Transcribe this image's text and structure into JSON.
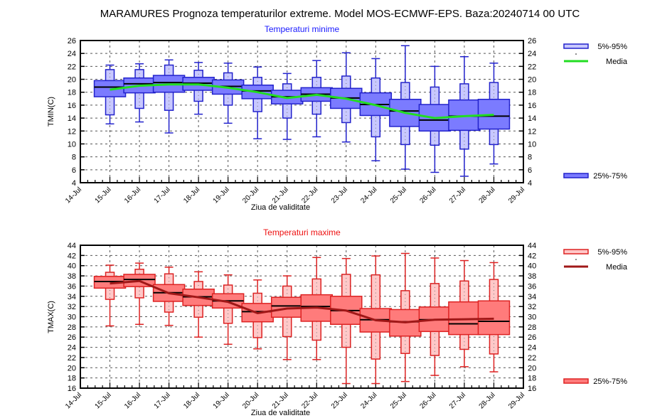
{
  "title": "MARAMURES  Prognoza temperaturilor extreme.  Model MOS-ECMWF-EPS. Baza:20240714 00 UTC",
  "chart_data": [
    {
      "type": "box",
      "title": "Temperaturi minime",
      "xlabel": "Ziua de validitate",
      "ylabel": "TMIN(C)",
      "ylim": [
        4,
        26
      ],
      "yticks": [
        4,
        6,
        8,
        10,
        12,
        14,
        16,
        18,
        20,
        22,
        24,
        26
      ],
      "xtick_labels": [
        "14-Jul",
        "15-Jul",
        "16-Jul",
        "17-Jul",
        "18-Jul",
        "19-Jul",
        "20-Jul",
        "21-Jul",
        "22-Jul",
        "23-Jul",
        "24-Jul",
        "25-Jul",
        "26-Jul",
        "27-Jul",
        "28-Jul",
        "29-Jul"
      ],
      "grid": true,
      "legend": [
        {
          "label": "5%-95%",
          "kind": "box-outer"
        },
        {
          "label": "Media",
          "kind": "line"
        },
        {
          "label": "25%-75%",
          "kind": "box-inner"
        }
      ],
      "colors": {
        "outer_fill": "#c8c8ff",
        "inner_fill": "#7b7bff",
        "stroke": "#2222cc",
        "median": "#000000",
        "mean": "#22dd22"
      },
      "categories": [
        "15-Jul",
        "16-Jul",
        "17-Jul",
        "18-Jul",
        "19-Jul",
        "20-Jul",
        "21-Jul",
        "22-Jul",
        "23-Jul",
        "24-Jul",
        "25-Jul",
        "26-Jul",
        "27-Jul",
        "28-Jul"
      ],
      "series": [
        {
          "name": "max",
          "values": [
            22.2,
            22.4,
            23.0,
            22.6,
            22.5,
            21.9,
            20.9,
            22.9,
            24.1,
            23.2,
            25.2,
            22.0,
            23.5,
            22.5
          ]
        },
        {
          "name": "p95",
          "values": [
            21.5,
            21.5,
            22.2,
            21.4,
            21.0,
            20.3,
            19.3,
            20.3,
            20.5,
            20.2,
            19.5,
            18.8,
            19.3,
            19.5
          ]
        },
        {
          "name": "p75",
          "values": [
            19.8,
            20.2,
            20.6,
            20.3,
            19.9,
            19.1,
            18.3,
            18.7,
            18.6,
            17.9,
            16.9,
            16.1,
            16.8,
            16.9
          ]
        },
        {
          "name": "median",
          "values": [
            18.8,
            19.3,
            19.5,
            19.4,
            18.9,
            18.2,
            17.3,
            17.7,
            17.1,
            16.1,
            15.1,
            13.7,
            14.3,
            14.3
          ]
        },
        {
          "name": "p25",
          "values": [
            17.3,
            17.9,
            18.0,
            18.3,
            17.7,
            17.0,
            16.2,
            16.6,
            15.5,
            14.4,
            12.7,
            12.0,
            12.1,
            12.3
          ]
        },
        {
          "name": "p5",
          "values": [
            14.5,
            15.5,
            15.2,
            16.6,
            16.0,
            15.0,
            14.0,
            14.6,
            13.3,
            11.1,
            9.9,
            9.8,
            9.2,
            9.9
          ]
        },
        {
          "name": "min",
          "values": [
            13.1,
            13.4,
            11.7,
            14.6,
            13.2,
            10.8,
            10.7,
            11.1,
            10.3,
            7.4,
            6.1,
            5.6,
            5.0,
            6.9
          ]
        },
        {
          "name": "Media",
          "values": [
            18.4,
            19.0,
            19.2,
            19.2,
            18.7,
            18.0,
            17.1,
            17.6,
            17.0,
            16.0,
            14.8,
            14.0,
            14.3,
            14.5
          ]
        }
      ]
    },
    {
      "type": "box",
      "title": "Temperaturi maxime",
      "xlabel": "Ziua de validitate",
      "ylabel": "TMAX(C)",
      "ylim": [
        16,
        44
      ],
      "yticks": [
        16,
        18,
        20,
        22,
        24,
        26,
        28,
        30,
        32,
        34,
        36,
        38,
        40,
        42,
        44
      ],
      "xtick_labels": [
        "14-Jul",
        "15-Jul",
        "16-Jul",
        "17-Jul",
        "18-Jul",
        "19-Jul",
        "20-Jul",
        "21-Jul",
        "22-Jul",
        "23-Jul",
        "24-Jul",
        "25-Jul",
        "26-Jul",
        "27-Jul",
        "28-Jul",
        "29-Jul"
      ],
      "grid": true,
      "legend": [
        {
          "label": "5%-95%",
          "kind": "box-outer"
        },
        {
          "label": "Media",
          "kind": "line"
        },
        {
          "label": "25%-75%",
          "kind": "box-inner"
        }
      ],
      "colors": {
        "outer_fill": "#ffc8c8",
        "inner_fill": "#ff7b7b",
        "stroke": "#dd2222",
        "median": "#000000",
        "mean": "#a01818"
      },
      "categories": [
        "15-Jul",
        "16-Jul",
        "17-Jul",
        "18-Jul",
        "19-Jul",
        "20-Jul",
        "21-Jul",
        "22-Jul",
        "23-Jul",
        "24-Jul",
        "25-Jul",
        "26-Jul",
        "27-Jul",
        "28-Jul"
      ],
      "series": [
        {
          "name": "max",
          "values": [
            40.1,
            40.5,
            39.7,
            38.8,
            38.2,
            37.2,
            38.0,
            41.6,
            41.4,
            41.9,
            42.4,
            41.5,
            41.0,
            40.6
          ]
        },
        {
          "name": "p95",
          "values": [
            38.7,
            39.3,
            38.4,
            36.9,
            36.2,
            34.6,
            36.0,
            37.4,
            38.3,
            38.2,
            35.1,
            36.5,
            37.0,
            37.3
          ]
        },
        {
          "name": "p75",
          "values": [
            37.9,
            38.3,
            36.3,
            35.4,
            34.5,
            32.6,
            33.8,
            34.3,
            34.0,
            31.6,
            31.4,
            31.9,
            32.9,
            33.1
          ]
        },
        {
          "name": "median",
          "values": [
            36.9,
            37.3,
            34.7,
            33.9,
            33.1,
            31.0,
            32.1,
            32.0,
            31.2,
            29.4,
            29.0,
            29.4,
            28.6,
            29.1
          ]
        },
        {
          "name": "p25",
          "values": [
            35.6,
            35.9,
            33.0,
            32.2,
            31.7,
            29.0,
            29.9,
            29.1,
            28.5,
            27.0,
            26.2,
            27.1,
            26.5,
            26.5
          ]
        },
        {
          "name": "p5",
          "values": [
            33.4,
            33.7,
            30.9,
            29.9,
            28.7,
            25.9,
            26.1,
            25.4,
            24.0,
            21.7,
            22.8,
            22.4,
            23.6,
            22.7
          ]
        },
        {
          "name": "min",
          "values": [
            28.2,
            28.5,
            28.3,
            26.0,
            24.6,
            23.7,
            21.6,
            21.6,
            16.9,
            16.9,
            17.3,
            18.5,
            20.2,
            19.2
          ]
        },
        {
          "name": "Media",
          "values": [
            36.5,
            37.0,
            34.6,
            33.8,
            32.9,
            30.7,
            31.6,
            31.8,
            31.2,
            29.3,
            28.9,
            29.4,
            29.5,
            29.6
          ]
        }
      ]
    }
  ]
}
